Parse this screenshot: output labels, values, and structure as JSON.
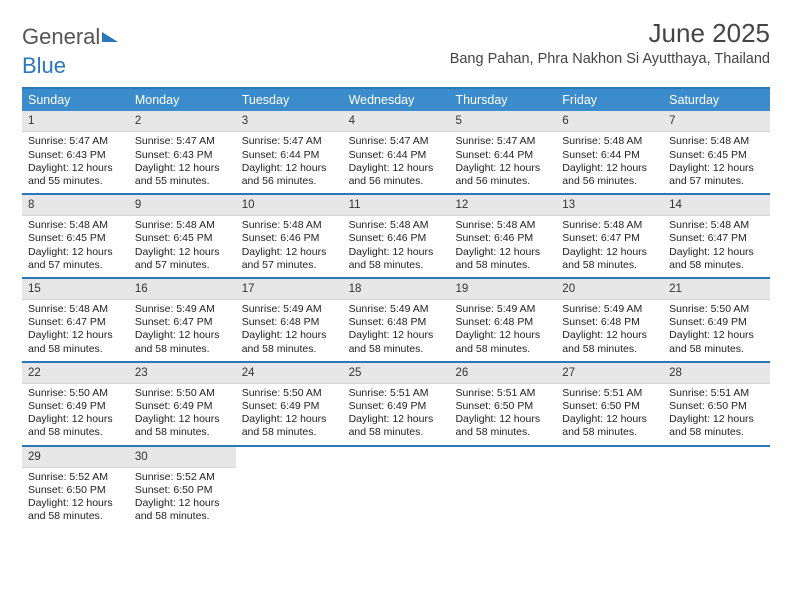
{
  "logo": {
    "part1": "General",
    "part2": "Blue"
  },
  "title": "June 2025",
  "location": "Bang Pahan, Phra Nakhon Si Ayutthaya, Thailand",
  "colors": {
    "header_bg": "#3b8ccc",
    "rule": "#2a77bc",
    "daynum_bg": "#e7e7e7",
    "text": "#222222"
  },
  "weekdays": [
    "Sunday",
    "Monday",
    "Tuesday",
    "Wednesday",
    "Thursday",
    "Friday",
    "Saturday"
  ],
  "weeks": [
    [
      {
        "day": "1",
        "sunrise": "5:47 AM",
        "sunset": "6:43 PM",
        "daylight": "12 hours and 55 minutes."
      },
      {
        "day": "2",
        "sunrise": "5:47 AM",
        "sunset": "6:43 PM",
        "daylight": "12 hours and 55 minutes."
      },
      {
        "day": "3",
        "sunrise": "5:47 AM",
        "sunset": "6:44 PM",
        "daylight": "12 hours and 56 minutes."
      },
      {
        "day": "4",
        "sunrise": "5:47 AM",
        "sunset": "6:44 PM",
        "daylight": "12 hours and 56 minutes."
      },
      {
        "day": "5",
        "sunrise": "5:47 AM",
        "sunset": "6:44 PM",
        "daylight": "12 hours and 56 minutes."
      },
      {
        "day": "6",
        "sunrise": "5:48 AM",
        "sunset": "6:44 PM",
        "daylight": "12 hours and 56 minutes."
      },
      {
        "day": "7",
        "sunrise": "5:48 AM",
        "sunset": "6:45 PM",
        "daylight": "12 hours and 57 minutes."
      }
    ],
    [
      {
        "day": "8",
        "sunrise": "5:48 AM",
        "sunset": "6:45 PM",
        "daylight": "12 hours and 57 minutes."
      },
      {
        "day": "9",
        "sunrise": "5:48 AM",
        "sunset": "6:45 PM",
        "daylight": "12 hours and 57 minutes."
      },
      {
        "day": "10",
        "sunrise": "5:48 AM",
        "sunset": "6:46 PM",
        "daylight": "12 hours and 57 minutes."
      },
      {
        "day": "11",
        "sunrise": "5:48 AM",
        "sunset": "6:46 PM",
        "daylight": "12 hours and 58 minutes."
      },
      {
        "day": "12",
        "sunrise": "5:48 AM",
        "sunset": "6:46 PM",
        "daylight": "12 hours and 58 minutes."
      },
      {
        "day": "13",
        "sunrise": "5:48 AM",
        "sunset": "6:47 PM",
        "daylight": "12 hours and 58 minutes."
      },
      {
        "day": "14",
        "sunrise": "5:48 AM",
        "sunset": "6:47 PM",
        "daylight": "12 hours and 58 minutes."
      }
    ],
    [
      {
        "day": "15",
        "sunrise": "5:48 AM",
        "sunset": "6:47 PM",
        "daylight": "12 hours and 58 minutes."
      },
      {
        "day": "16",
        "sunrise": "5:49 AM",
        "sunset": "6:47 PM",
        "daylight": "12 hours and 58 minutes."
      },
      {
        "day": "17",
        "sunrise": "5:49 AM",
        "sunset": "6:48 PM",
        "daylight": "12 hours and 58 minutes."
      },
      {
        "day": "18",
        "sunrise": "5:49 AM",
        "sunset": "6:48 PM",
        "daylight": "12 hours and 58 minutes."
      },
      {
        "day": "19",
        "sunrise": "5:49 AM",
        "sunset": "6:48 PM",
        "daylight": "12 hours and 58 minutes."
      },
      {
        "day": "20",
        "sunrise": "5:49 AM",
        "sunset": "6:48 PM",
        "daylight": "12 hours and 58 minutes."
      },
      {
        "day": "21",
        "sunrise": "5:50 AM",
        "sunset": "6:49 PM",
        "daylight": "12 hours and 58 minutes."
      }
    ],
    [
      {
        "day": "22",
        "sunrise": "5:50 AM",
        "sunset": "6:49 PM",
        "daylight": "12 hours and 58 minutes."
      },
      {
        "day": "23",
        "sunrise": "5:50 AM",
        "sunset": "6:49 PM",
        "daylight": "12 hours and 58 minutes."
      },
      {
        "day": "24",
        "sunrise": "5:50 AM",
        "sunset": "6:49 PM",
        "daylight": "12 hours and 58 minutes."
      },
      {
        "day": "25",
        "sunrise": "5:51 AM",
        "sunset": "6:49 PM",
        "daylight": "12 hours and 58 minutes."
      },
      {
        "day": "26",
        "sunrise": "5:51 AM",
        "sunset": "6:50 PM",
        "daylight": "12 hours and 58 minutes."
      },
      {
        "day": "27",
        "sunrise": "5:51 AM",
        "sunset": "6:50 PM",
        "daylight": "12 hours and 58 minutes."
      },
      {
        "day": "28",
        "sunrise": "5:51 AM",
        "sunset": "6:50 PM",
        "daylight": "12 hours and 58 minutes."
      }
    ],
    [
      {
        "day": "29",
        "sunrise": "5:52 AM",
        "sunset": "6:50 PM",
        "daylight": "12 hours and 58 minutes."
      },
      {
        "day": "30",
        "sunrise": "5:52 AM",
        "sunset": "6:50 PM",
        "daylight": "12 hours and 58 minutes."
      },
      null,
      null,
      null,
      null,
      null
    ]
  ],
  "labels": {
    "sunrise_prefix": "Sunrise: ",
    "sunset_prefix": "Sunset: ",
    "daylight_prefix": "Daylight: "
  }
}
